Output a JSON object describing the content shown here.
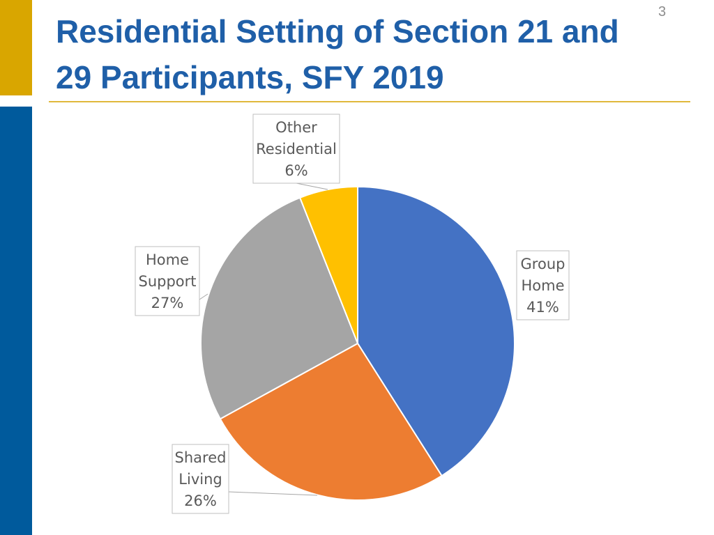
{
  "slide": {
    "number": "3",
    "title_line1": "Residential Setting of Section 21 and",
    "title_line2": "29 Participants, SFY 2019"
  },
  "colors": {
    "title": "#1F5FA8",
    "accent_gold": "#D9A600",
    "accent_blue": "#005A9C"
  },
  "chart_data": {
    "type": "pie",
    "title": "",
    "slices": [
      {
        "label": "Group Home",
        "value": 41,
        "display": "41%",
        "color": "#4472C4"
      },
      {
        "label": "Shared Living",
        "value": 26,
        "display": "26%",
        "color": "#ED7D31"
      },
      {
        "label": "Home Support",
        "value": 27,
        "display": "27%",
        "color": "#A5A5A5"
      },
      {
        "label": "Other Residential",
        "value": 6,
        "display": "6%",
        "color": "#FFC000"
      }
    ],
    "data_label_lines": [
      [
        "Group",
        "Home",
        "41%"
      ],
      [
        "Shared",
        "Living",
        "26%"
      ],
      [
        "Home",
        "Support",
        "27%"
      ],
      [
        "Other",
        "Residential",
        "6%"
      ]
    ],
    "start": "12 o'clock",
    "direction": "clockwise",
    "legend": "none"
  }
}
